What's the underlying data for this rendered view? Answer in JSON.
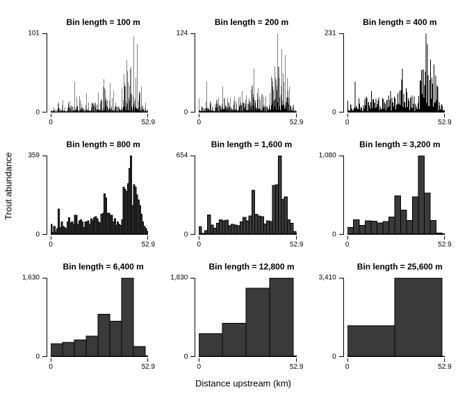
{
  "chart_data": {
    "type": "bar",
    "layout": "3x3-small-multiples",
    "title": "",
    "xlabel": "Distance upstream (km)",
    "ylabel": "Trout abundance",
    "x_range": [
      0,
      52.9
    ],
    "x_tick_labels": [
      "0",
      "52.9"
    ],
    "y_zero_label": "0",
    "bar_fill_coarse": "#3a3a3a",
    "bar_fill_fine": "#000000",
    "bar_stroke": "#000000",
    "split_weights": [
      0.85,
      0.15,
      0.6,
      0.9,
      0.3,
      0.75,
      0.1,
      0.5,
      0.8,
      0.25,
      0.65,
      0.95,
      0.4,
      0.2,
      0.7,
      0.55
    ],
    "panels": [
      {
        "title": "Bin length = 100 m",
        "bin_m": 100,
        "bins": 529,
        "ymax": 101,
        "ymax_label": "101",
        "synthesize": {
          "from_bin_m": 800,
          "splits": 3
        }
      },
      {
        "title": "Bin length = 200 m",
        "bin_m": 200,
        "bins": 265,
        "ymax": 124,
        "ymax_label": "124",
        "synthesize": {
          "from_bin_m": 800,
          "splits": 2
        }
      },
      {
        "title": "Bin length = 400 m",
        "bin_m": 400,
        "bins": 133,
        "ymax": 231,
        "ymax_label": "231",
        "synthesize": {
          "from_bin_m": 800,
          "splits": 1
        }
      },
      {
        "title": "Bin length = 800 m",
        "bin_m": 800,
        "bins": 67,
        "ymax": 359,
        "ymax_label": "359",
        "values": [
          45,
          8,
          35,
          10,
          25,
          115,
          30,
          55,
          35,
          30,
          25,
          55,
          75,
          50,
          55,
          45,
          85,
          85,
          45,
          60,
          65,
          55,
          30,
          55,
          55,
          60,
          45,
          70,
          60,
          75,
          80,
          70,
          55,
          50,
          90,
          95,
          185,
          165,
          95,
          95,
          85,
          85,
          55,
          70,
          40,
          55,
          45,
          40,
          65,
          215,
          205,
          195,
          230,
          300,
          359,
          130,
          225,
          215,
          180,
          155,
          130,
          90,
          55,
          35,
          25,
          12,
          5
        ]
      },
      {
        "title": "Bin length = 1,600 m",
        "bin_m": 1600,
        "bins": 34,
        "ymax": 654,
        "ymax_label": "654",
        "values": [
          60,
          5,
          30,
          160,
          75,
          50,
          90,
          120,
          110,
          115,
          70,
          80,
          75,
          70,
          100,
          140,
          110,
          150,
          365,
          165,
          150,
          145,
          85,
          110,
          105,
          405,
          410,
          654,
          290,
          310,
          120,
          90,
          20,
          5
        ]
      },
      {
        "title": "Bin length = 3,200 m",
        "bin_m": 3200,
        "bins": 17,
        "ymax": 1080,
        "ymax_label": "1,080",
        "values": [
          90,
          195,
          120,
          180,
          175,
          155,
          170,
          235,
          525,
          330,
          185,
          510,
          1080,
          565,
          185,
          15,
          5
        ]
      },
      {
        "title": "Bin length = 6,400 m",
        "bin_m": 6400,
        "bins": 9,
        "ymax": 1630,
        "ymax_label": "1,630",
        "values": [
          260,
          290,
          340,
          420,
          870,
          730,
          1630,
          200,
          5
        ]
      },
      {
        "title": "Bin length = 12,800 m",
        "bin_m": 12800,
        "bins": 5,
        "ymax": 1830,
        "ymax_label": "1,830",
        "values": [
          530,
          770,
          1590,
          1830,
          5
        ]
      },
      {
        "title": "Bin length = 25,600 m",
        "bin_m": 25600,
        "bins": 3,
        "ymax": 3410,
        "ymax_label": "3,410",
        "values": [
          1330,
          3410,
          5
        ]
      }
    ]
  }
}
